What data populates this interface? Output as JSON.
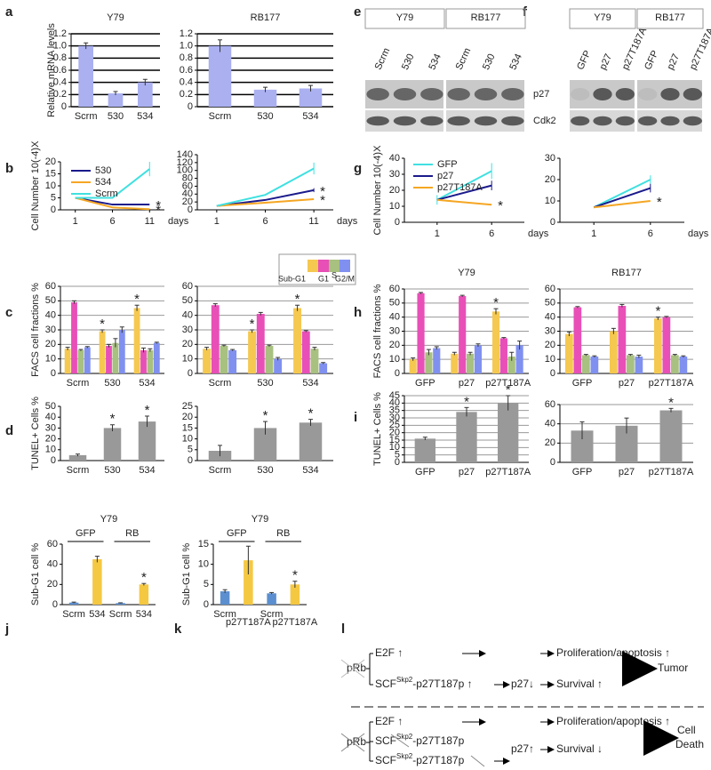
{
  "panels": [
    "a",
    "b",
    "c",
    "d",
    "e",
    "f",
    "g",
    "h",
    "i",
    "j",
    "k",
    "l"
  ],
  "chart_data": [
    {
      "type": "bar",
      "title": "Y79",
      "ylabel": "Relative mRNA levels",
      "categories": [
        "Scrm",
        "530",
        "534"
      ],
      "values": [
        1.0,
        0.22,
        0.4
      ],
      "errors": [
        0.05,
        0.03,
        0.05
      ],
      "color": "#aab0f0",
      "ylim": [
        0,
        1.2
      ],
      "yticks": [
        0,
        0.2,
        0.4,
        0.6,
        0.8,
        {
          "value": 1,
          "label": "1.0"
        },
        1.2
      ],
      "grid": true,
      "grid_color": "#000000"
    },
    {
      "type": "bar",
      "title": "RB177",
      "categories": [
        "Scrm",
        "530",
        "534"
      ],
      "values": [
        1.0,
        0.28,
        0.3
      ],
      "errors": [
        0.1,
        0.04,
        0.05
      ],
      "color": "#aab0f0",
      "ylim": [
        0,
        1.2
      ],
      "yticks": [
        0,
        0.2,
        0.4,
        0.6,
        0.8,
        {
          "value": 1,
          "label": "1.0"
        },
        1.2
      ],
      "grid": true,
      "grid_color": "#000000"
    },
    {
      "type": "line",
      "ylabel": "Cell Number 10(-4)X",
      "xlabel": "days",
      "x": [
        1,
        6,
        11
      ],
      "xlim": [
        -1,
        13
      ],
      "xticks": [
        1,
        6,
        11
      ],
      "ylim": [
        0,
        20
      ],
      "yticks": [
        0,
        5,
        10,
        15,
        20
      ],
      "legend": "upper left",
      "series": [
        {
          "name": "530",
          "color": "#1a1a8c",
          "values": [
            5,
            2.2,
            2.2
          ]
        },
        {
          "name": "534",
          "color": "#f5a623",
          "values": [
            5,
            1,
            0.3
          ]
        },
        {
          "name": "Scrm",
          "color": "#40e0e0",
          "values": [
            5,
            5,
            17
          ],
          "errors": [
            null,
            null,
            3
          ]
        }
      ],
      "annotations": [
        {
          "text": "*",
          "series": 0,
          "index": 2
        },
        {
          "text": "*",
          "series": 1,
          "index": 2
        }
      ]
    },
    {
      "type": "line",
      "xlabel": "days",
      "x": [
        1,
        6,
        11
      ],
      "xlim": [
        -1,
        13
      ],
      "xticks": [
        1,
        6,
        11
      ],
      "ylim": [
        0,
        140
      ],
      "yticks": [
        0,
        20,
        40,
        60,
        80,
        100,
        120,
        140
      ],
      "series": [
        {
          "name": "530",
          "color": "#1a1a8c",
          "values": [
            10,
            25,
            50
          ],
          "errors": [
            null,
            null,
            5
          ]
        },
        {
          "name": "534",
          "color": "#f5a623",
          "values": [
            10,
            18,
            27
          ]
        },
        {
          "name": "Scrm",
          "color": "#40e0e0",
          "values": [
            10,
            38,
            105
          ],
          "errors": [
            null,
            null,
            15
          ]
        }
      ],
      "annotations": [
        {
          "text": "*",
          "series": 0,
          "index": 2
        },
        {
          "text": "*",
          "series": 1,
          "index": 2
        }
      ]
    },
    {
      "type": "bar",
      "ylabel": "FACS cell fractions %",
      "categories": [
        "Scrm",
        "530",
        "534"
      ],
      "ylim": [
        0,
        60
      ],
      "yticks": [
        0,
        10,
        20,
        30,
        40,
        50,
        60
      ],
      "grid": true,
      "grid_color": "#999999",
      "legend": "above",
      "series": [
        {
          "name": "Sub-G1",
          "color": "#f5c850",
          "values": [
            17,
            29,
            45
          ],
          "errors": [
            1,
            1,
            2
          ]
        },
        {
          "name": "G1",
          "color": "#e84fb7",
          "values": [
            49,
            19,
            16
          ],
          "errors": [
            1,
            1,
            1.5
          ]
        },
        {
          "name": "S",
          "color": "#a8c080",
          "values": [
            16,
            21,
            16
          ],
          "errors": [
            0.5,
            3,
            1
          ]
        },
        {
          "name": "G2/M",
          "color": "#8090f0",
          "values": [
            18,
            30,
            21
          ],
          "errors": [
            0.5,
            2,
            0.5
          ]
        }
      ],
      "annotations": [
        {
          "text": "*",
          "series": 0,
          "index": 1
        },
        {
          "text": "*",
          "series": 0,
          "index": 2
        }
      ]
    },
    {
      "type": "bar",
      "categories": [
        "Scrm",
        "530",
        "534"
      ],
      "ylim": [
        0,
        60
      ],
      "yticks": [
        0,
        10,
        20,
        30,
        40,
        50,
        60
      ],
      "grid": true,
      "grid_color": "#999999",
      "series": [
        {
          "name": "Sub-G1",
          "color": "#f5c850",
          "values": [
            17,
            29,
            45
          ],
          "errors": [
            1,
            1,
            2
          ]
        },
        {
          "name": "G1",
          "color": "#e84fb7",
          "values": [
            47,
            41,
            29
          ],
          "errors": [
            1,
            1,
            0.5
          ]
        },
        {
          "name": "S",
          "color": "#a8c080",
          "values": [
            19,
            19,
            17
          ],
          "errors": [
            0.5,
            0.5,
            1
          ]
        },
        {
          "name": "G2/M",
          "color": "#8090f0",
          "values": [
            16,
            10,
            7
          ],
          "errors": [
            0.5,
            1,
            0.5
          ]
        }
      ],
      "annotations": [
        {
          "text": "*",
          "series": 0,
          "index": 1
        },
        {
          "text": "*",
          "series": 0,
          "index": 2
        }
      ]
    },
    {
      "type": "bar",
      "ylabel": "TUNEL+ Cells %",
      "categories": [
        "Scrm",
        "530",
        "534"
      ],
      "values": [
        5,
        30,
        36
      ],
      "errors": [
        1,
        3,
        5
      ],
      "color": "#999999",
      "ylim": [
        0,
        50
      ],
      "yticks": [
        0,
        10,
        20,
        30,
        40,
        50
      ],
      "grid": false,
      "annotations": [
        {
          "text": "*",
          "index": 1
        },
        {
          "text": "*",
          "index": 2
        }
      ]
    },
    {
      "type": "bar",
      "categories": [
        "Scrm",
        "530",
        "534"
      ],
      "values": [
        4.5,
        15,
        17.5
      ],
      "errors": [
        2.5,
        3,
        1.5
      ],
      "color": "#999999",
      "ylim": [
        0,
        25
      ],
      "yticks": [
        0,
        5,
        10,
        15,
        20,
        25
      ],
      "grid": false,
      "annotations": [
        {
          "text": "*",
          "index": 1
        },
        {
          "text": "*",
          "index": 2
        }
      ]
    },
    {
      "type": "line",
      "ylabel": "Cell Number 10(-4)X",
      "xlabel": "days",
      "x": [
        1,
        6
      ],
      "xlim": [
        -2,
        9
      ],
      "xticks": [
        1,
        6
      ],
      "ylim": [
        0,
        40
      ],
      "yticks": [
        0,
        10,
        20,
        30,
        40
      ],
      "legend": "upper left",
      "series": [
        {
          "name": "GFP",
          "color": "#40e0e0",
          "values": [
            14,
            32
          ],
          "errors": [
            3,
            5
          ]
        },
        {
          "name": "p27",
          "color": "#1a1a8c",
          "values": [
            14,
            23
          ],
          "errors": [
            null,
            3
          ]
        },
        {
          "name": "p27T187A",
          "color": "#f5a623",
          "values": [
            14,
            11
          ]
        }
      ],
      "annotations": [
        {
          "text": "*",
          "series": 2,
          "index": 1
        }
      ]
    },
    {
      "type": "line",
      "xlabel": "days",
      "x": [
        1,
        6
      ],
      "xlim": [
        -2,
        9
      ],
      "xticks": [
        1,
        6
      ],
      "ylim": [
        0,
        30
      ],
      "yticks": [
        0,
        10,
        20,
        30
      ],
      "series": [
        {
          "name": "GFP",
          "color": "#40e0e0",
          "values": [
            7,
            20
          ],
          "errors": [
            null,
            2
          ]
        },
        {
          "name": "p27",
          "color": "#1a1a8c",
          "values": [
            7,
            16
          ],
          "errors": [
            null,
            2
          ]
        },
        {
          "name": "p27T187A",
          "color": "#f5a623",
          "values": [
            7,
            10
          ]
        }
      ],
      "annotations": [
        {
          "text": "*",
          "series": 2,
          "index": 1
        }
      ]
    },
    {
      "type": "bar",
      "title": "Y79",
      "ylabel": "FACS cell fractions %",
      "categories": [
        "GFP",
        "p27",
        "p27T187A"
      ],
      "ylim": [
        0,
        60
      ],
      "yticks": [
        0,
        10,
        20,
        30,
        40,
        50,
        60
      ],
      "grid": true,
      "grid_color": "#999999",
      "series": [
        {
          "name": "Sub-G1",
          "color": "#f5c850",
          "values": [
            10,
            14,
            44
          ],
          "errors": [
            1,
            1,
            2
          ]
        },
        {
          "name": "G1",
          "color": "#e84fb7",
          "values": [
            57,
            55,
            25
          ],
          "errors": [
            0.5,
            0.5,
            0.5
          ]
        },
        {
          "name": "S",
          "color": "#a8c080",
          "values": [
            15,
            14,
            12
          ],
          "errors": [
            2,
            1,
            3
          ]
        },
        {
          "name": "G2/M",
          "color": "#8090f0",
          "values": [
            18,
            20,
            20
          ],
          "errors": [
            1,
            1,
            3
          ]
        }
      ],
      "annotations": [
        {
          "text": "*",
          "series": 0,
          "index": 2
        }
      ]
    },
    {
      "type": "bar",
      "title": "RB177",
      "categories": [
        "GFP",
        "p27",
        "p27T187A"
      ],
      "ylim": [
        0,
        60
      ],
      "yticks": [
        0,
        10,
        20,
        30,
        40,
        50,
        60
      ],
      "grid": true,
      "grid_color": "#999999",
      "series": [
        {
          "name": "Sub-G1",
          "color": "#f5c850",
          "values": [
            28,
            30,
            39
          ],
          "errors": [
            1.5,
            2,
            1
          ]
        },
        {
          "name": "G1",
          "color": "#e84fb7",
          "values": [
            47,
            48,
            40
          ],
          "errors": [
            0.5,
            1,
            0.5
          ]
        },
        {
          "name": "S",
          "color": "#a8c080",
          "values": [
            13,
            13,
            13
          ],
          "errors": [
            0.5,
            0.5,
            0.5
          ]
        },
        {
          "name": "G2/M",
          "color": "#8090f0",
          "values": [
            12,
            12,
            12
          ],
          "errors": [
            0.5,
            1,
            0.5
          ]
        }
      ],
      "annotations": [
        {
          "text": "*",
          "series": 0,
          "index": 2
        }
      ]
    },
    {
      "type": "bar",
      "ylabel": "TUNEL+ Cells %",
      "categories": [
        "GFP",
        "p27",
        "p27T187A"
      ],
      "values": [
        16,
        34,
        40
      ],
      "errors": [
        1,
        3,
        5
      ],
      "color": "#999999",
      "ylim": [
        0,
        45
      ],
      "yticks": [
        0,
        5,
        10,
        15,
        20,
        25,
        30,
        35,
        40,
        45
      ],
      "grid": true,
      "grid_color": "#999999",
      "annotations": [
        {
          "text": "*",
          "index": 1
        },
        {
          "text": "*",
          "index": 2
        }
      ]
    },
    {
      "type": "bar",
      "categories": [
        "GFP",
        "p27",
        "p27T187A"
      ],
      "values": [
        33,
        38,
        54
      ],
      "errors": [
        9,
        8,
        2
      ],
      "color": "#999999",
      "ylim": [
        0,
        60
      ],
      "yticks": [
        0,
        20,
        40,
        60
      ],
      "grid": true,
      "grid_color": "#999999",
      "annotations": [
        {
          "text": "*",
          "index": 2
        }
      ]
    },
    {
      "type": "bar",
      "title": "Y79",
      "ylabel": "Sub-G1 cell %",
      "groups": [
        "GFP",
        "RB"
      ],
      "categories": [
        "Scrm",
        "534",
        "Scrm",
        "534"
      ],
      "values": [
        2,
        45,
        1.5,
        20
      ],
      "errors": [
        0.5,
        3,
        0.3,
        1
      ],
      "colors": [
        "#5b8fd0",
        "#f5c842",
        "#5b8fd0",
        "#f5c842"
      ],
      "ylim": [
        0,
        60
      ],
      "yticks": [
        0,
        20,
        40,
        60
      ],
      "grid": false,
      "annotations": [
        {
          "text": "*",
          "index": 3
        }
      ]
    },
    {
      "type": "bar",
      "title": "Y79",
      "ylabel": "Sub-G1 cell %",
      "groups": [
        "GFP",
        "RB"
      ],
      "categories": [
        "Scrm",
        "p27T187A",
        "Scrm",
        "p27T187A"
      ],
      "values": [
        3.3,
        11,
        2.8,
        5
      ],
      "errors": [
        0.4,
        3.5,
        0.2,
        0.8
      ],
      "colors": [
        "#5b8fd0",
        "#f5c842",
        "#5b8fd0",
        "#f5c842"
      ],
      "ylim": [
        0,
        15
      ],
      "yticks": [
        0,
        5,
        10,
        15
      ],
      "grid": false,
      "annotations": [
        {
          "text": "*",
          "index": 3
        }
      ]
    }
  ],
  "blots": [
    {
      "groups": [
        "Y79",
        "RB177"
      ],
      "lanes": [
        "Scrm",
        "530",
        "534",
        "Scrm",
        "530",
        "534"
      ]
    },
    {
      "groups": [
        "Y79",
        "RB177"
      ],
      "lanes": [
        "GFP",
        "p27",
        "p27T187A",
        "GFP",
        "p27",
        "p27T187A"
      ],
      "rows": [
        "p27",
        "Cdk2"
      ]
    }
  ],
  "diagram": {
    "top": {
      "prb": "pRb",
      "e2f": "E2F ↑",
      "prolif": "Proliferation/apoptosis ↑",
      "scf": "SCF",
      "skp2": "Skp2",
      "sub": "-p27T187p ↑",
      "p27": "p27↓",
      "survival": "Survival ↑",
      "outcome": "Tumor"
    },
    "bottom": {
      "prb": "pRb",
      "e2f": "E2F ↑",
      "prolif": "Proliferation/apoptosis ↑",
      "scf": "SCF",
      "skp2": "Skp2",
      "sub": "-p27T187p",
      "p27": "p27↑",
      "survival": "Survival ↓",
      "scf2": "SCF",
      "skp2b": "Skp2",
      "sub2": "-p27T187p",
      "outcome": [
        "Cell",
        "Death"
      ]
    }
  }
}
